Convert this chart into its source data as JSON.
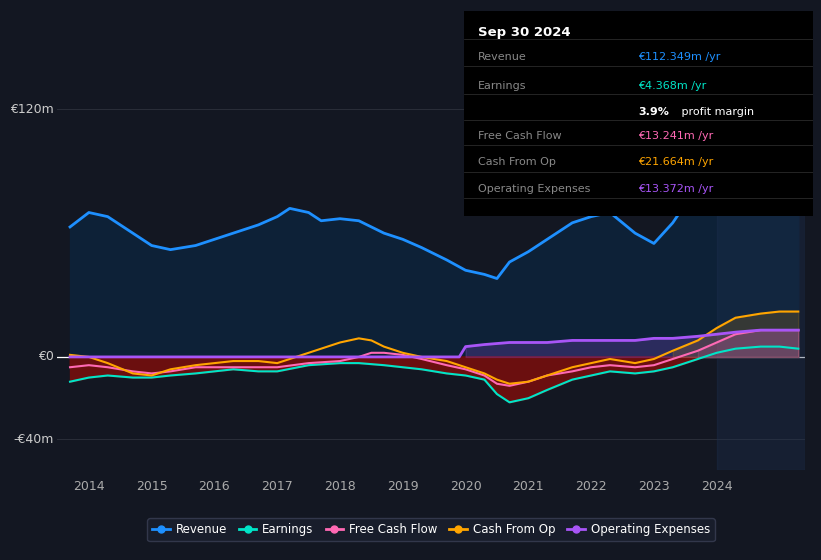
{
  "bg_color": "#131722",
  "plot_bg_color": "#131722",
  "grid_color": "#2a2e39",
  "zero_line_color": "#ffffff",
  "ylim": [
    -55,
    135
  ],
  "ytick_vals": [
    -40,
    0,
    120
  ],
  "ytick_labels": [
    "-€40m",
    "€0",
    "€120m"
  ],
  "xlim": [
    2013.5,
    2025.4
  ],
  "xticks": [
    2014,
    2015,
    2016,
    2017,
    2018,
    2019,
    2020,
    2021,
    2022,
    2023,
    2024
  ],
  "revenue": {
    "x": [
      2013.7,
      2014.0,
      2014.3,
      2014.7,
      2015.0,
      2015.3,
      2015.7,
      2016.0,
      2016.3,
      2016.7,
      2017.0,
      2017.2,
      2017.5,
      2017.7,
      2018.0,
      2018.3,
      2018.5,
      2018.7,
      2019.0,
      2019.3,
      2019.7,
      2020.0,
      2020.3,
      2020.5,
      2020.7,
      2021.0,
      2021.3,
      2021.7,
      2022.0,
      2022.3,
      2022.7,
      2023.0,
      2023.3,
      2023.7,
      2024.0,
      2024.3,
      2024.7,
      2025.0,
      2025.3
    ],
    "y": [
      63,
      70,
      68,
      60,
      54,
      52,
      54,
      57,
      60,
      64,
      68,
      72,
      70,
      66,
      67,
      66,
      63,
      60,
      57,
      53,
      47,
      42,
      40,
      38,
      46,
      51,
      57,
      65,
      68,
      70,
      60,
      55,
      65,
      83,
      100,
      110,
      115,
      119,
      122
    ],
    "color": "#1e90ff",
    "fill_color": "#0d2137",
    "label": "Revenue"
  },
  "earnings": {
    "x": [
      2013.7,
      2014.0,
      2014.3,
      2014.7,
      2015.0,
      2015.3,
      2015.7,
      2016.0,
      2016.3,
      2016.7,
      2017.0,
      2017.5,
      2018.0,
      2018.3,
      2018.7,
      2019.0,
      2019.3,
      2019.7,
      2020.0,
      2020.3,
      2020.5,
      2020.7,
      2021.0,
      2021.3,
      2021.7,
      2022.0,
      2022.3,
      2022.7,
      2023.0,
      2023.3,
      2023.7,
      2024.0,
      2024.3,
      2024.7,
      2025.0,
      2025.3
    ],
    "y": [
      -12,
      -10,
      -9,
      -10,
      -10,
      -9,
      -8,
      -7,
      -6,
      -7,
      -7,
      -4,
      -3,
      -3,
      -4,
      -5,
      -6,
      -8,
      -9,
      -11,
      -18,
      -22,
      -20,
      -16,
      -11,
      -9,
      -7,
      -8,
      -7,
      -5,
      -1,
      2,
      4,
      5,
      5,
      4
    ],
    "color": "#00e5c8",
    "label": "Earnings"
  },
  "free_cash_flow": {
    "x": [
      2013.7,
      2014.0,
      2014.3,
      2014.7,
      2015.0,
      2015.3,
      2015.7,
      2016.0,
      2016.3,
      2016.7,
      2017.0,
      2017.5,
      2018.0,
      2018.3,
      2018.5,
      2018.7,
      2019.0,
      2019.3,
      2019.7,
      2020.0,
      2020.3,
      2020.5,
      2020.7,
      2021.0,
      2021.3,
      2021.7,
      2022.0,
      2022.3,
      2022.7,
      2023.0,
      2023.3,
      2023.7,
      2024.0,
      2024.3,
      2024.7,
      2025.0,
      2025.3
    ],
    "y": [
      -5,
      -4,
      -5,
      -7,
      -8,
      -7,
      -5,
      -5,
      -5,
      -5,
      -5,
      -3,
      -2,
      0,
      2,
      2,
      1,
      -1,
      -4,
      -6,
      -9,
      -13,
      -14,
      -12,
      -9,
      -7,
      -5,
      -4,
      -5,
      -4,
      -1,
      3,
      7,
      11,
      13,
      13,
      13
    ],
    "color": "#ff69b4",
    "label": "Free Cash Flow"
  },
  "cash_from_op": {
    "x": [
      2013.7,
      2014.0,
      2014.3,
      2014.7,
      2015.0,
      2015.3,
      2015.7,
      2016.0,
      2016.3,
      2016.7,
      2017.0,
      2017.3,
      2017.5,
      2017.7,
      2018.0,
      2018.3,
      2018.5,
      2018.7,
      2019.0,
      2019.3,
      2019.7,
      2020.0,
      2020.3,
      2020.5,
      2020.7,
      2021.0,
      2021.3,
      2021.7,
      2022.0,
      2022.3,
      2022.7,
      2023.0,
      2023.3,
      2023.7,
      2024.0,
      2024.3,
      2024.7,
      2025.0,
      2025.3
    ],
    "y": [
      1,
      0,
      -3,
      -8,
      -9,
      -6,
      -4,
      -3,
      -2,
      -2,
      -3,
      0,
      2,
      4,
      7,
      9,
      8,
      5,
      2,
      0,
      -2,
      -5,
      -8,
      -11,
      -13,
      -12,
      -9,
      -5,
      -3,
      -1,
      -3,
      -1,
      3,
      8,
      14,
      19,
      21,
      22,
      22
    ],
    "color": "#ffa500",
    "label": "Cash From Op"
  },
  "op_expenses": {
    "x": [
      2013.7,
      2019.9,
      2020.0,
      2020.3,
      2020.7,
      2021.0,
      2021.3,
      2021.7,
      2022.0,
      2022.3,
      2022.7,
      2023.0,
      2023.3,
      2023.7,
      2024.0,
      2024.3,
      2024.7,
      2025.0,
      2025.3
    ],
    "y": [
      0,
      0,
      5,
      6,
      7,
      7,
      7,
      8,
      8,
      8,
      8,
      9,
      9,
      10,
      11,
      12,
      13,
      13,
      13
    ],
    "color": "#a855f7",
    "label": "Operating Expenses"
  },
  "negative_fill_color": "#6b0f0f",
  "forecast_start": 2024.0,
  "info_box": {
    "date": "Sep 30 2024",
    "rows": [
      {
        "label": "Revenue",
        "value": "€112.349m /yr",
        "value_color": "#1e90ff"
      },
      {
        "label": "Earnings",
        "value": "€4.368m /yr",
        "value_color": "#00e5c8"
      },
      {
        "label": "",
        "value": "3.9% profit margin",
        "value_color": "#ffffff",
        "bold_part": "3.9%"
      },
      {
        "label": "Free Cash Flow",
        "value": "€13.241m /yr",
        "value_color": "#ff69b4"
      },
      {
        "label": "Cash From Op",
        "value": "€21.664m /yr",
        "value_color": "#ffa500"
      },
      {
        "label": "Operating Expenses",
        "value": "€13.372m /yr",
        "value_color": "#a855f7"
      }
    ]
  },
  "legend": [
    {
      "label": "Revenue",
      "color": "#1e90ff"
    },
    {
      "label": "Earnings",
      "color": "#00e5c8"
    },
    {
      "label": "Free Cash Flow",
      "color": "#ff69b4"
    },
    {
      "label": "Cash From Op",
      "color": "#ffa500"
    },
    {
      "label": "Operating Expenses",
      "color": "#a855f7"
    }
  ]
}
